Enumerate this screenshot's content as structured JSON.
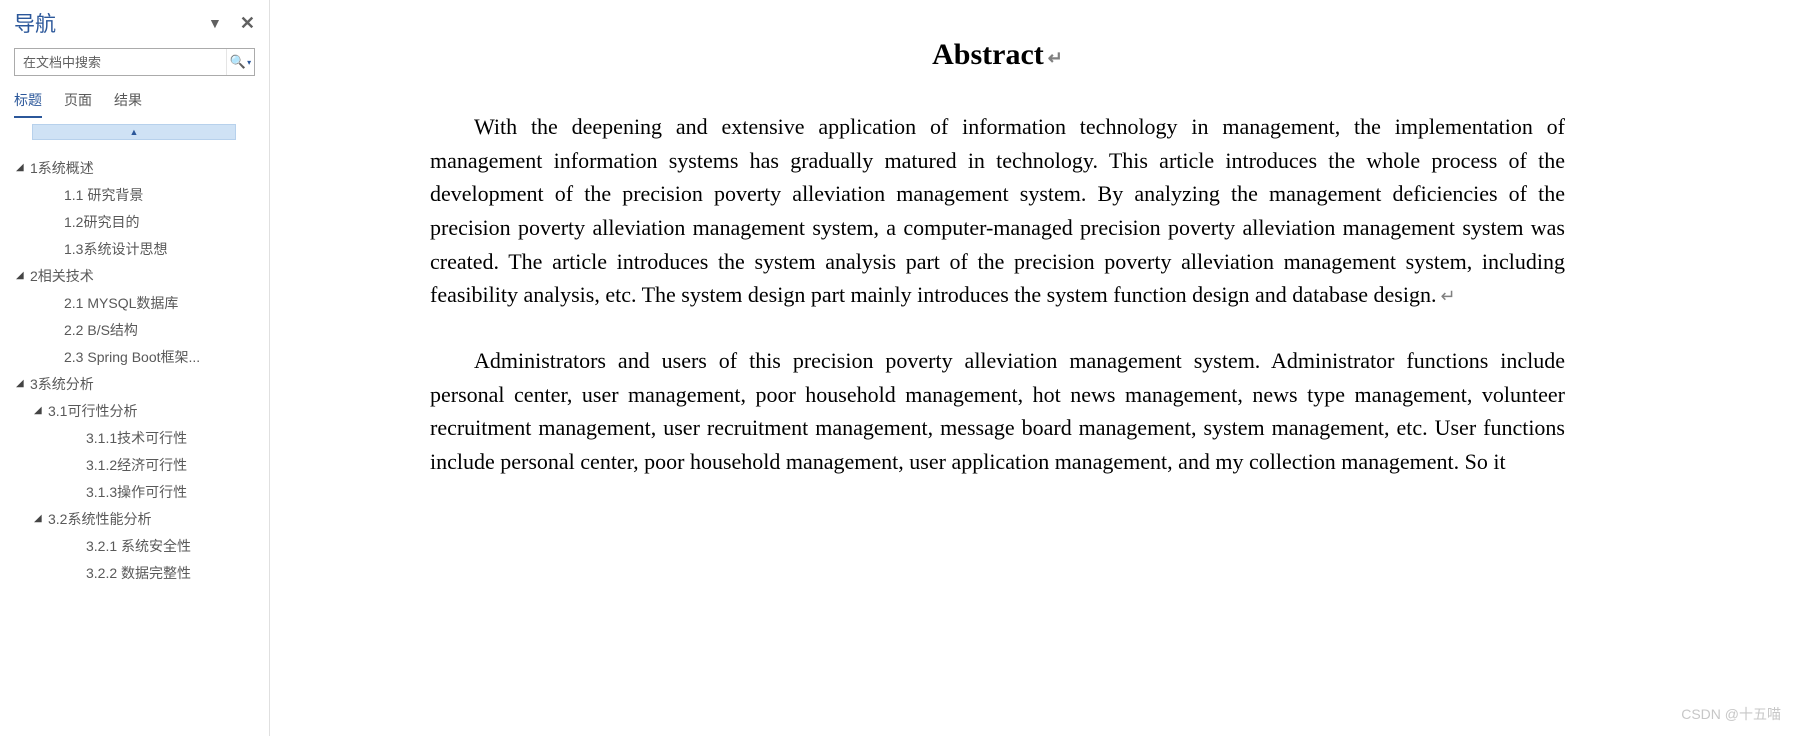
{
  "nav": {
    "title": "导航",
    "search_placeholder": "在文档中搜索",
    "tabs": {
      "headings": "标题",
      "pages": "页面",
      "results": "结果"
    }
  },
  "outline": [
    {
      "level": 1,
      "expand": true,
      "label": "1系统概述"
    },
    {
      "level": 2,
      "expand": null,
      "label": "1.1 研究背景"
    },
    {
      "level": 2,
      "expand": null,
      "label": "1.2研究目的"
    },
    {
      "level": 2,
      "expand": null,
      "label": "1.3系统设计思想"
    },
    {
      "level": 1,
      "expand": true,
      "label": "2相关技术"
    },
    {
      "level": 2,
      "expand": null,
      "label": "2.1 MYSQL数据库"
    },
    {
      "level": 2,
      "expand": null,
      "label": "2.2 B/S结构"
    },
    {
      "level": 2,
      "expand": null,
      "label": "2.3 Spring Boot框架..."
    },
    {
      "level": 1,
      "expand": true,
      "label": "3系统分析"
    },
    {
      "level": 1.5,
      "expand": true,
      "label": "3.1可行性分析"
    },
    {
      "level": 3,
      "expand": null,
      "label": "3.1.1技术可行性"
    },
    {
      "level": 3,
      "expand": null,
      "label": "3.1.2经济可行性"
    },
    {
      "level": 3,
      "expand": null,
      "label": "3.1.3操作可行性"
    },
    {
      "level": 1.5,
      "expand": true,
      "label": "3.2系统性能分析"
    },
    {
      "level": 3,
      "expand": null,
      "label": "3.2.1 系统安全性"
    },
    {
      "level": 3,
      "expand": null,
      "label": "3.2.2 数据完整性"
    }
  ],
  "document": {
    "title": "Abstract",
    "para1": "With the deepening and extensive application of information technology in management, the implementation of management information systems has gradually matured in technology. This article introduces the whole process of the development of the precision poverty alleviation management system. By analyzing the management deficiencies of the precision poverty alleviation management system, a computer-managed precision poverty alleviation management system was created. The article introduces the system analysis part of the precision poverty alleviation management system, including feasibility analysis, etc. The system design part mainly introduces the system function design and database design.",
    "para2": "Administrators and users of this precision poverty alleviation management system. Administrator functions include personal center, user management, poor household management, hot news management, news type management, volunteer recruitment management, user recruitment management, message board management, system management, etc. User functions include personal center, poor household management, user application management, and my collection management. So it"
  },
  "watermark": "CSDN @十五喵",
  "colors": {
    "accent": "#2b579a",
    "text": "#595959",
    "collapse_bg": "#cfe2f5"
  }
}
